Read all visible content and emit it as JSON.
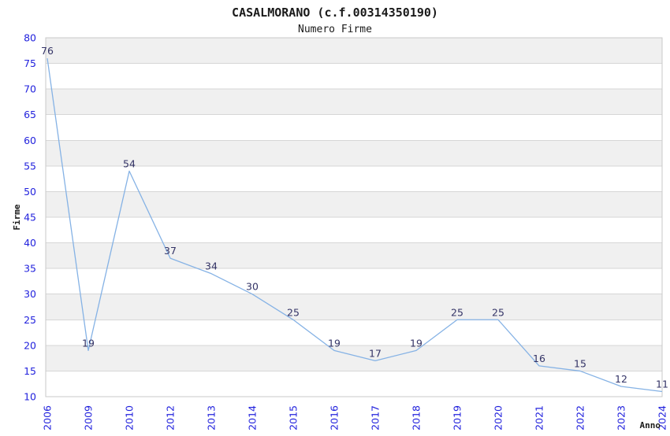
{
  "chart_data": {
    "type": "line",
    "title": "CASALMORANO (c.f.00314350190)",
    "subtitle": "Numero Firme",
    "xlabel": "Anno",
    "ylabel": "Firme",
    "categories": [
      "2006",
      "2009",
      "2010",
      "2012",
      "2013",
      "2014",
      "2015",
      "2016",
      "2017",
      "2018",
      "2019",
      "2020",
      "2021",
      "2022",
      "2023",
      "2024"
    ],
    "series": [
      {
        "name": "Numero Firme",
        "values": [
          76,
          19,
          54,
          37,
          34,
          30,
          25,
          19,
          17,
          19,
          25,
          25,
          16,
          15,
          12,
          11
        ]
      }
    ],
    "point_labels": [
      "76",
      "19",
      "54",
      "37",
      "34",
      "30",
      "25",
      "19",
      "17",
      "19",
      "25",
      "25",
      "16",
      "15",
      "12",
      "11"
    ],
    "ylim": [
      10,
      80
    ],
    "yticks": [
      10,
      15,
      20,
      25,
      30,
      35,
      40,
      45,
      50,
      55,
      60,
      65,
      70,
      75,
      80
    ],
    "grid": "horizontal",
    "background_bands": "alternating 5-unit horizontal stripes, gray topmost (80-75)",
    "legend": "none",
    "x_tick_rotation_deg": -90,
    "colors": {
      "line": "#85b2e5",
      "axis_tick_labels": "#2222dd",
      "point_labels": "#333366",
      "band_fill": "#f0f0f0",
      "gridline": "#d6d6d6",
      "plot_border": "#c9c9c9",
      "text": "#1a1a1a",
      "background": "#ffffff"
    }
  }
}
